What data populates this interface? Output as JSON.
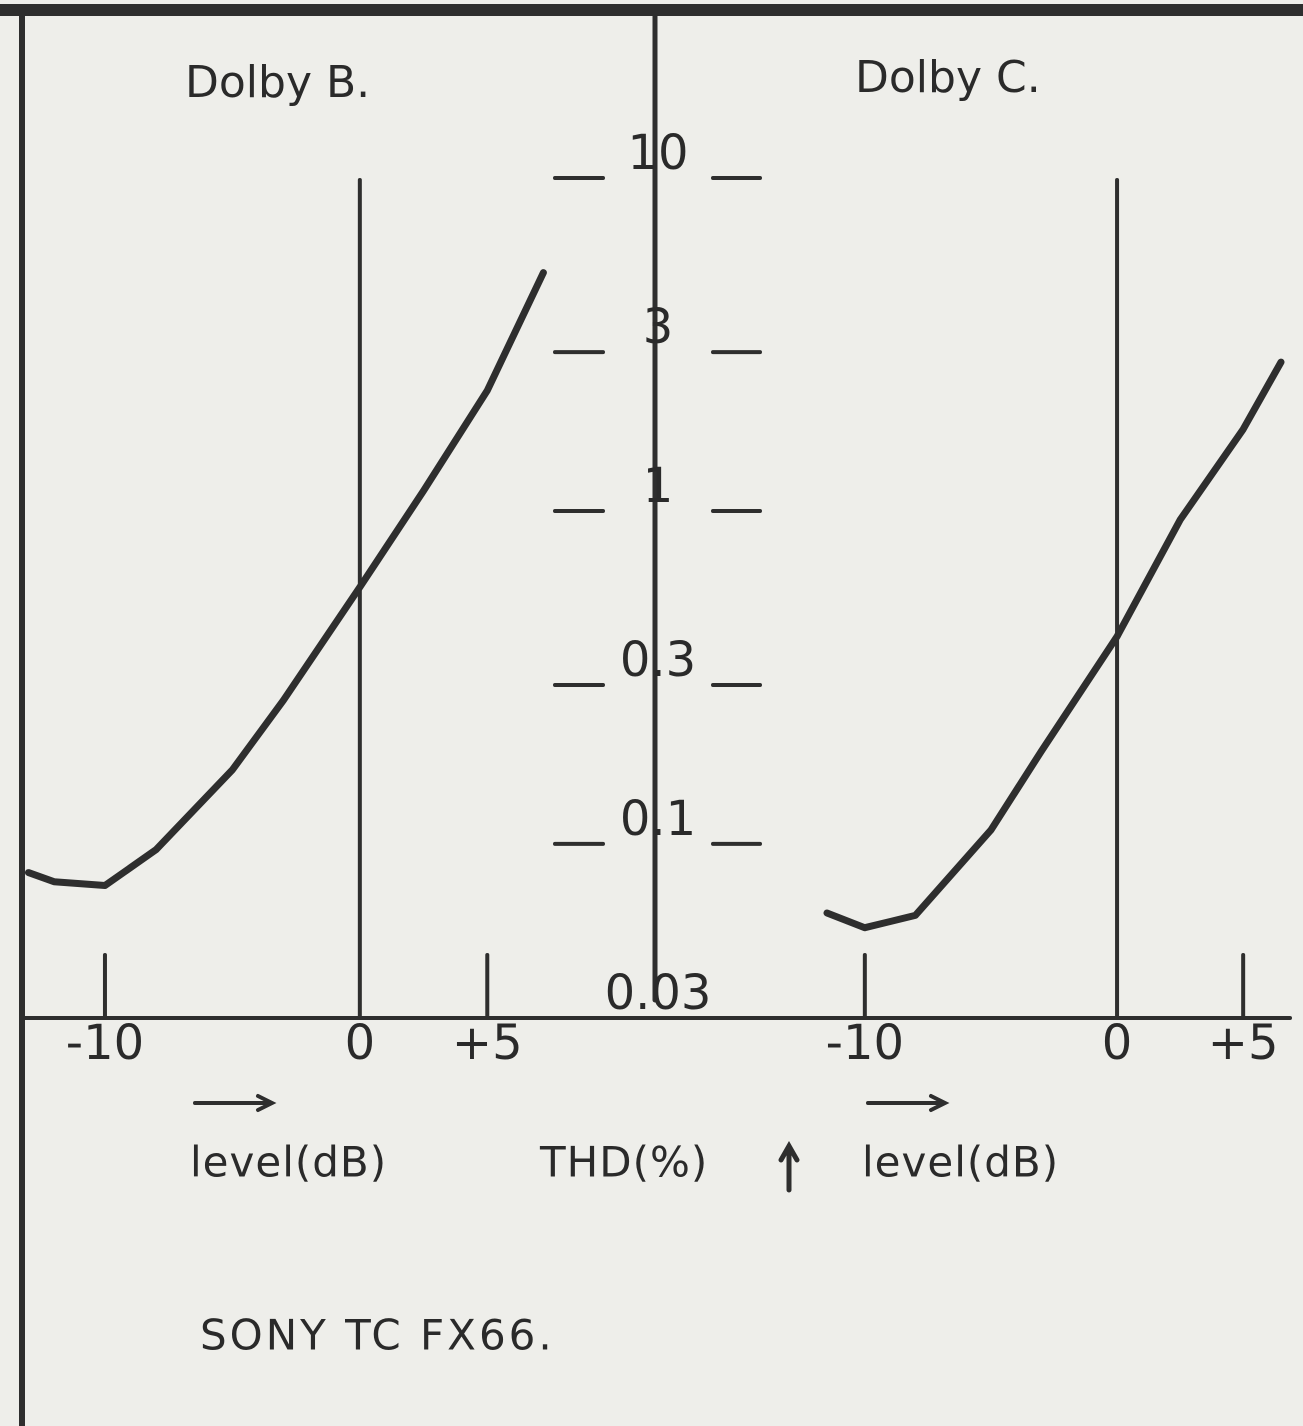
{
  "chart_data": [
    {
      "type": "line",
      "title": "Dolby B.",
      "xlabel": "level(dB)",
      "x": [
        -13,
        -12,
        -10,
        -8,
        -5,
        -3,
        0,
        2.5,
        5,
        7.2
      ],
      "values": [
        0.082,
        0.077,
        0.075,
        0.096,
        0.167,
        0.27,
        0.59,
        1.15,
        2.3,
        5.2
      ],
      "color": "#2e2e2e",
      "xlim": [
        -13,
        7.5
      ],
      "xticks": [
        -10,
        0,
        {
          "value": 5,
          "label": "+5"
        }
      ],
      "ylim": [
        0.03,
        10
      ],
      "log_y": true,
      "ylabel": "THD(%)",
      "yticks": [
        10,
        3,
        1,
        0.3,
        0.1,
        0.03
      ]
    },
    {
      "type": "line",
      "title": "Dolby C.",
      "xlabel": "level(dB)",
      "x": [
        -11.5,
        -10,
        -8,
        -5,
        -3,
        0,
        2.5,
        5,
        6.5
      ],
      "values": [
        0.062,
        0.056,
        0.061,
        0.11,
        0.19,
        0.42,
        0.94,
        1.76,
        2.8
      ],
      "color": "#2e2e2e",
      "xlim": [
        -11.5,
        6.5
      ],
      "xticks": [
        -10,
        0,
        {
          "value": 5,
          "label": "+5"
        }
      ],
      "ylim": [
        0.03,
        10
      ],
      "log_y": true
    }
  ],
  "caption": "SONY TC FX66."
}
